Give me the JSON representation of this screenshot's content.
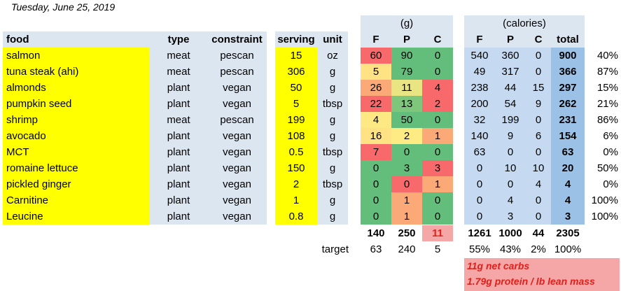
{
  "date": "Tuesday, June 25, 2019",
  "headers": {
    "food": "food",
    "type": "type",
    "constraint": "constraint",
    "serving": "serving",
    "unit": "unit",
    "grams_group": "(g)",
    "calories_group": "(calories)",
    "f": "F",
    "p": "P",
    "c": "C",
    "total": "total"
  },
  "rows": [
    {
      "food": "salmon",
      "type": "meat",
      "constraint": "pescan",
      "serving": "15",
      "unit": "oz",
      "gf": "60",
      "gp": "90",
      "gc": "0",
      "cf": "540",
      "cp": "360",
      "cc": "0",
      "total": "900",
      "pct": "40%"
    },
    {
      "food": "tuna steak (ahi)",
      "type": "meat",
      "constraint": "pescan",
      "serving": "306",
      "unit": "g",
      "gf": "5",
      "gp": "79",
      "gc": "0",
      "cf": "49",
      "cp": "317",
      "cc": "0",
      "total": "366",
      "pct": "87%"
    },
    {
      "food": "almonds",
      "type": "plant",
      "constraint": "vegan",
      "serving": "50",
      "unit": "g",
      "gf": "26",
      "gp": "11",
      "gc": "4",
      "cf": "238",
      "cp": "44",
      "cc": "15",
      "total": "297",
      "pct": "15%"
    },
    {
      "food": "pumpkin seed",
      "type": "plant",
      "constraint": "vegan",
      "serving": "5",
      "unit": "tbsp",
      "gf": "22",
      "gp": "13",
      "gc": "2",
      "cf": "200",
      "cp": "54",
      "cc": "9",
      "total": "262",
      "pct": "21%"
    },
    {
      "food": "shrimp",
      "type": "meat",
      "constraint": "pescan",
      "serving": "199",
      "unit": "g",
      "gf": "4",
      "gp": "50",
      "gc": "0",
      "cf": "32",
      "cp": "199",
      "cc": "0",
      "total": "231",
      "pct": "86%"
    },
    {
      "food": "avocado",
      "type": "plant",
      "constraint": "vegan",
      "serving": "108",
      "unit": "g",
      "gf": "16",
      "gp": "2",
      "gc": "1",
      "cf": "140",
      "cp": "9",
      "cc": "6",
      "total": "154",
      "pct": "6%"
    },
    {
      "food": "MCT",
      "type": "plant",
      "constraint": "vegan",
      "serving": "0.5",
      "unit": "tbsp",
      "gf": "7",
      "gp": "0",
      "gc": "0",
      "cf": "63",
      "cp": "0",
      "cc": "0",
      "total": "63",
      "pct": "0%"
    },
    {
      "food": "romaine lettuce",
      "type": "plant",
      "constraint": "vegan",
      "serving": "150",
      "unit": "g",
      "gf": "0",
      "gp": "3",
      "gc": "3",
      "cf": "0",
      "cp": "10",
      "cc": "10",
      "total": "20",
      "pct": "50%"
    },
    {
      "food": "pickled ginger",
      "type": "plant",
      "constraint": "vegan",
      "serving": "2",
      "unit": "tbsp",
      "gf": "0",
      "gp": "0",
      "gc": "1",
      "cf": "0",
      "cp": "0",
      "cc": "4",
      "total": "4",
      "pct": "0%"
    },
    {
      "food": "Carnitine",
      "type": "plant",
      "constraint": "vegan",
      "serving": "1",
      "unit": "g",
      "gf": "0",
      "gp": "1",
      "gc": "0",
      "cf": "0",
      "cp": "4",
      "cc": "0",
      "total": "4",
      "pct": "100%"
    },
    {
      "food": "Leucine",
      "type": "plant",
      "constraint": "vegan",
      "serving": "0.8",
      "unit": "g",
      "gf": "0",
      "gp": "1",
      "gc": "0",
      "cf": "0",
      "cp": "3",
      "cc": "0",
      "total": "3",
      "pct": "100%"
    }
  ],
  "heat_colors": [
    [
      "#f8696b",
      "#63be7b",
      "#63be7b"
    ],
    [
      "#fee283",
      "#63be7b",
      "#63be7b"
    ],
    [
      "#fbaa77",
      "#e9e583",
      "#f8696b"
    ],
    [
      "#f8696b",
      "#7fc67d",
      "#f8696b"
    ],
    [
      "#fde983",
      "#63be7b",
      "#63be7b"
    ],
    [
      "#fee283",
      "#ffeb84",
      "#fbaa77"
    ],
    [
      "#f8696b",
      "#63be7b",
      "#63be7b"
    ],
    [
      "#63be7b",
      "#63be7b",
      "#f8696b"
    ],
    [
      "#63be7b",
      "#f8696b",
      "#fbaa77"
    ],
    [
      "#63be7b",
      "#fbaa77",
      "#63be7b"
    ],
    [
      "#63be7b",
      "#fbaa77",
      "#63be7b"
    ]
  ],
  "totals": {
    "gf": "140",
    "gp": "250",
    "gc": "11",
    "cf": "1261",
    "cp": "1000",
    "cc": "44",
    "total": "2305"
  },
  "target": {
    "label": "target",
    "gf": "63",
    "gp": "240",
    "gc": "5",
    "cf": "55%",
    "cp": "43%",
    "cc": "2%",
    "total": "100%"
  },
  "notes": [
    "11g net carbs",
    "1.79g protein / lb lean mass"
  ],
  "colors": {
    "yellow": "#ffff00",
    "header_blue": "#dce6f1",
    "calorie_blue": "#c5d9f1",
    "total_blue": "#9bc2e6",
    "carb_alert": "#f4a7a6"
  }
}
